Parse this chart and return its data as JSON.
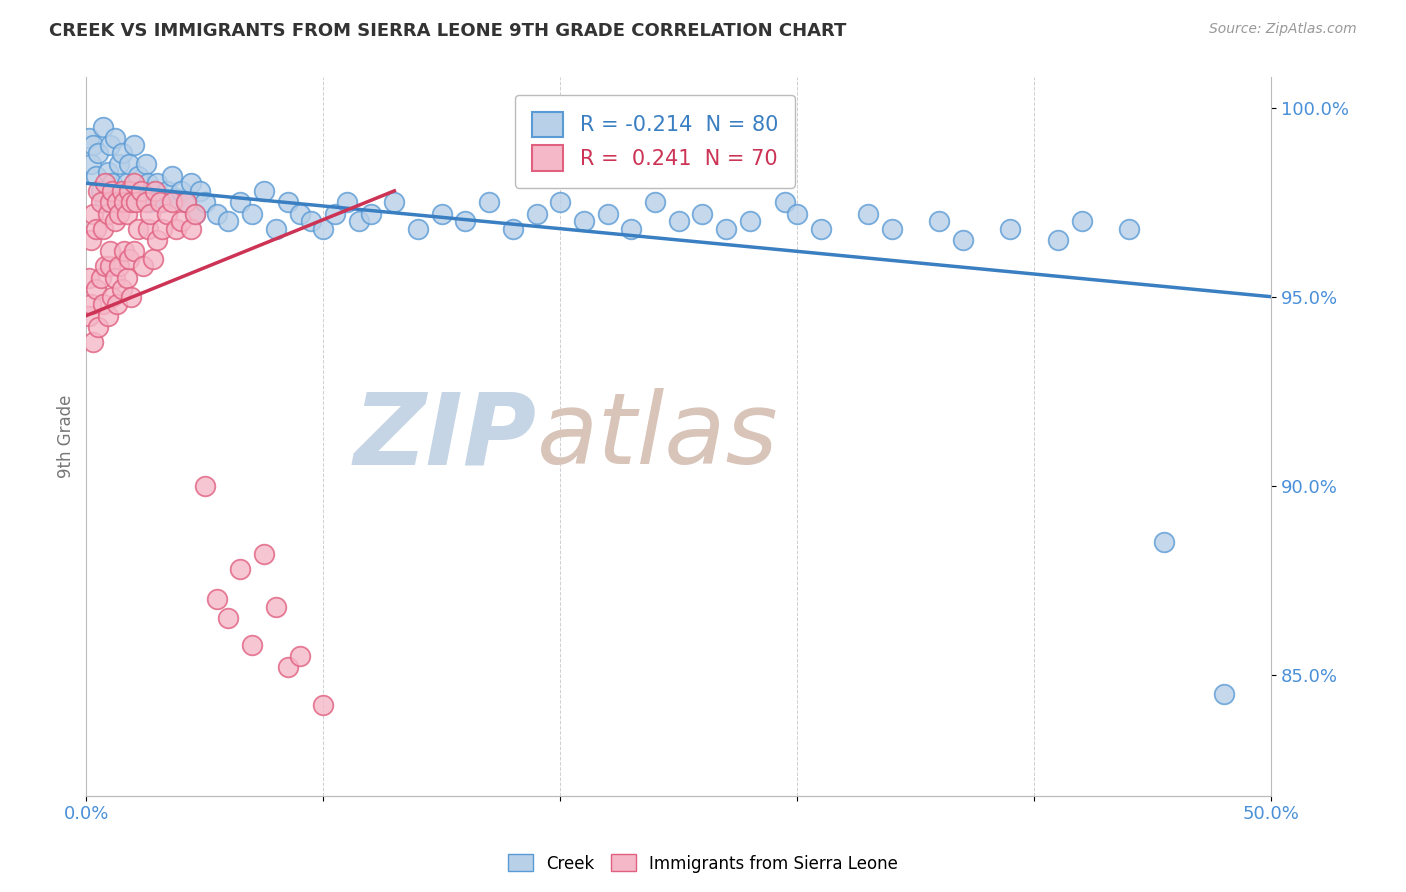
{
  "title": "CREEK VS IMMIGRANTS FROM SIERRA LEONE 9TH GRADE CORRELATION CHART",
  "source_text": "Source: ZipAtlas.com",
  "ylabel": "9th Grade",
  "legend_creek": "Creek",
  "legend_immigrants": "Immigrants from Sierra Leone",
  "creek_R": -0.214,
  "creek_N": 80,
  "immigrants_R": 0.241,
  "immigrants_N": 70,
  "creek_color": "#b8d0e8",
  "immigrants_color": "#f5b8c8",
  "creek_edge_color": "#5b9bd5",
  "immigrants_edge_color": "#e06080",
  "creek_line_color": "#3a7fc1",
  "immigrants_line_color": "#cc3355",
  "watermark_zip_color": "#c8d8e8",
  "watermark_atlas_color": "#d8c8c0",
  "background_color": "#ffffff",
  "xlim": [
    0.0,
    0.5
  ],
  "ylim": [
    0.818,
    1.008
  ],
  "creek_scatter_x": [
    0.001,
    0.002,
    0.003,
    0.004,
    0.005,
    0.006,
    0.007,
    0.008,
    0.009,
    0.01,
    0.011,
    0.012,
    0.013,
    0.014,
    0.015,
    0.016,
    0.017,
    0.018,
    0.019,
    0.02,
    0.022,
    0.024,
    0.025,
    0.026,
    0.027,
    0.028,
    0.03,
    0.032,
    0.034,
    0.036,
    0.038,
    0.04,
    0.042,
    0.044,
    0.046,
    0.048,
    0.05,
    0.055,
    0.06,
    0.065,
    0.07,
    0.075,
    0.08,
    0.085,
    0.09,
    0.095,
    0.1,
    0.105,
    0.11,
    0.115,
    0.12,
    0.13,
    0.14,
    0.15,
    0.16,
    0.17,
    0.18,
    0.19,
    0.2,
    0.21,
    0.22,
    0.23,
    0.24,
    0.25,
    0.26,
    0.27,
    0.28,
    0.295,
    0.31,
    0.33,
    0.34,
    0.36,
    0.37,
    0.39,
    0.41,
    0.42,
    0.44,
    0.3,
    0.455,
    0.48
  ],
  "creek_scatter_y": [
    0.992,
    0.985,
    0.99,
    0.982,
    0.988,
    0.978,
    0.995,
    0.975,
    0.983,
    0.99,
    0.98,
    0.992,
    0.976,
    0.985,
    0.988,
    0.975,
    0.98,
    0.985,
    0.978,
    0.99,
    0.982,
    0.976,
    0.985,
    0.98,
    0.975,
    0.978,
    0.98,
    0.975,
    0.978,
    0.982,
    0.976,
    0.978,
    0.975,
    0.98,
    0.972,
    0.978,
    0.975,
    0.972,
    0.97,
    0.975,
    0.972,
    0.978,
    0.968,
    0.975,
    0.972,
    0.97,
    0.968,
    0.972,
    0.975,
    0.97,
    0.972,
    0.975,
    0.968,
    0.972,
    0.97,
    0.975,
    0.968,
    0.972,
    0.975,
    0.97,
    0.972,
    0.968,
    0.975,
    0.97,
    0.972,
    0.968,
    0.97,
    0.975,
    0.968,
    0.972,
    0.968,
    0.97,
    0.965,
    0.968,
    0.965,
    0.97,
    0.968,
    0.972,
    0.885,
    0.845
  ],
  "immigrants_scatter_x": [
    0.001,
    0.001,
    0.002,
    0.002,
    0.003,
    0.003,
    0.004,
    0.004,
    0.005,
    0.005,
    0.006,
    0.006,
    0.007,
    0.007,
    0.008,
    0.008,
    0.009,
    0.009,
    0.01,
    0.01,
    0.01,
    0.011,
    0.011,
    0.012,
    0.012,
    0.013,
    0.013,
    0.014,
    0.014,
    0.015,
    0.015,
    0.016,
    0.016,
    0.017,
    0.017,
    0.018,
    0.018,
    0.019,
    0.019,
    0.02,
    0.02,
    0.021,
    0.022,
    0.023,
    0.024,
    0.025,
    0.026,
    0.027,
    0.028,
    0.029,
    0.03,
    0.031,
    0.032,
    0.034,
    0.036,
    0.038,
    0.04,
    0.042,
    0.044,
    0.046,
    0.05,
    0.055,
    0.06,
    0.065,
    0.07,
    0.075,
    0.08,
    0.085,
    0.09,
    0.1
  ],
  "immigrants_scatter_y": [
    0.955,
    0.945,
    0.965,
    0.948,
    0.972,
    0.938,
    0.968,
    0.952,
    0.978,
    0.942,
    0.975,
    0.955,
    0.968,
    0.948,
    0.98,
    0.958,
    0.972,
    0.945,
    0.975,
    0.958,
    0.962,
    0.978,
    0.95,
    0.97,
    0.955,
    0.975,
    0.948,
    0.972,
    0.958,
    0.978,
    0.952,
    0.975,
    0.962,
    0.972,
    0.955,
    0.978,
    0.96,
    0.975,
    0.95,
    0.98,
    0.962,
    0.975,
    0.968,
    0.978,
    0.958,
    0.975,
    0.968,
    0.972,
    0.96,
    0.978,
    0.965,
    0.975,
    0.968,
    0.972,
    0.975,
    0.968,
    0.97,
    0.975,
    0.968,
    0.972,
    0.9,
    0.87,
    0.865,
    0.878,
    0.858,
    0.882,
    0.868,
    0.852,
    0.855,
    0.842
  ],
  "creek_line_x0": 0.0,
  "creek_line_x1": 0.5,
  "creek_line_y0": 0.98,
  "creek_line_y1": 0.95,
  "immigrants_line_x0": 0.0,
  "immigrants_line_x1": 0.13,
  "immigrants_line_y0": 0.945,
  "immigrants_line_y1": 0.978
}
